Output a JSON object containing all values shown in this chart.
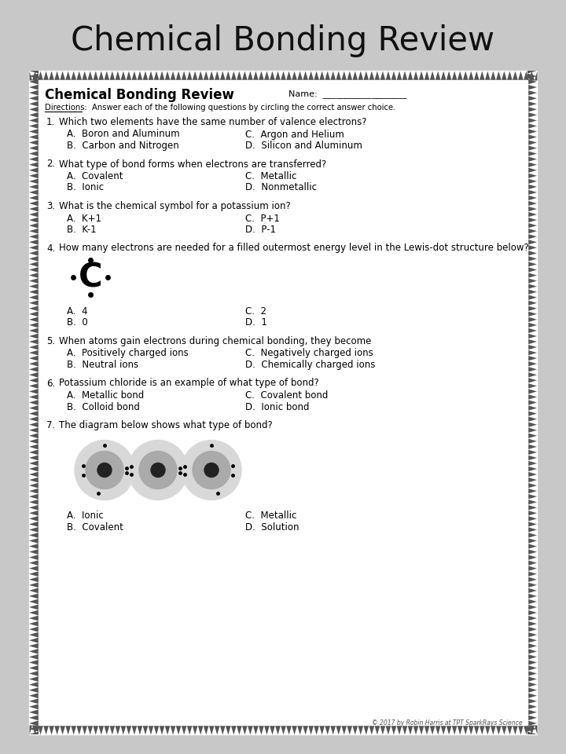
{
  "title": "Chemical Bonding Review",
  "page_title": "Chemical Bonding Review",
  "name_label": "Name:  ___________________",
  "directions": "Directions:  Answer each of the following questions by circling the correct answer choice.",
  "questions": [
    {
      "num": "1.",
      "text": "Which two elements have the same number of valence electrons?",
      "has_diagram": false,
      "diagram_type": "",
      "answers": [
        [
          "A.  Boron and Aluminum",
          "C.  Argon and Helium"
        ],
        [
          "B.  Carbon and Nitrogen",
          "D.  Silicon and Aluminum"
        ]
      ]
    },
    {
      "num": "2.",
      "text": "What type of bond forms when electrons are transferred?",
      "has_diagram": false,
      "diagram_type": "",
      "answers": [
        [
          "A.  Covalent",
          "C.  Metallic"
        ],
        [
          "B.  Ionic",
          "D.  Nonmetallic"
        ]
      ]
    },
    {
      "num": "3.",
      "text": "What is the chemical symbol for a potassium ion?",
      "has_diagram": false,
      "diagram_type": "",
      "answers": [
        [
          "A.  K+1",
          "C.  P+1"
        ],
        [
          "B.  K-1",
          "D.  P-1"
        ]
      ],
      "superscripts": [
        [
          "+1",
          "+1"
        ],
        [
          "-1",
          "-1"
        ]
      ]
    },
    {
      "num": "4.",
      "text": "How many electrons are needed for a filled outermost energy level in the Lewis-dot structure below?",
      "has_diagram": true,
      "diagram_type": "lewis_dot",
      "answers": [
        [
          "A.  4",
          "C.  2"
        ],
        [
          "B.  0",
          "D.  1"
        ]
      ]
    },
    {
      "num": "5.",
      "text": "When atoms gain electrons during chemical bonding, they become",
      "has_diagram": false,
      "diagram_type": "",
      "answers": [
        [
          "A.  Positively charged ions",
          "C.  Negatively charged ions"
        ],
        [
          "B.  Neutral ions",
          "D.  Chemically charged ions"
        ]
      ]
    },
    {
      "num": "6.",
      "text": "Potassium chloride is an example of what type of bond?",
      "has_diagram": false,
      "diagram_type": "",
      "answers": [
        [
          "A.  Metallic bond",
          "C.  Covalent bond"
        ],
        [
          "B.  Colloid bond",
          "D.  Ionic bond"
        ]
      ]
    },
    {
      "num": "7.",
      "text": "The diagram below shows what type of bond?",
      "has_diagram": true,
      "diagram_type": "metallic",
      "answers": [
        [
          "A.  Ionic",
          "C.  Metallic"
        ],
        [
          "B.  Covalent",
          "D.  Solution"
        ]
      ]
    }
  ],
  "copyright": "© 2017 by Robin Harris at TPT SparkRays Science",
  "bg_color": "#c8c8c8",
  "paper_color": "#ffffff",
  "border_color": "#333333",
  "text_color": "#000000",
  "title_fontsize": 30,
  "body_fontsize": 8.5
}
